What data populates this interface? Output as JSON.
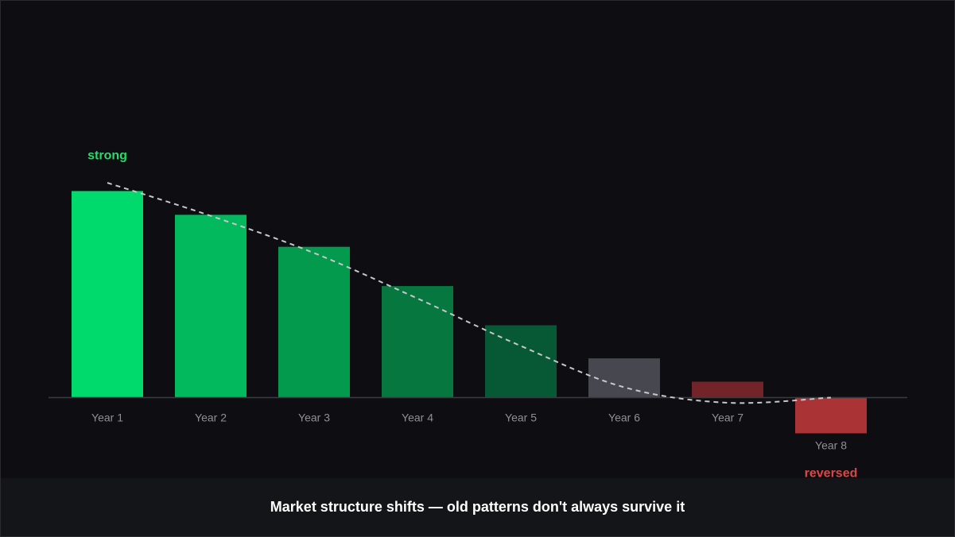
{
  "caption": "Market structure shifts — old patterns don't always survive it",
  "chart_data": {
    "type": "bar",
    "categories": [
      "Year 1",
      "Year 2",
      "Year 3",
      "Year 4",
      "Year 5",
      "Year 6",
      "Year 7",
      "Year 8"
    ],
    "values": [
      100,
      88.5,
      73,
      54,
      35,
      19,
      7.7,
      -17.3
    ],
    "bar_colors": [
      "#00d96c",
      "#02b95d",
      "#039a4e",
      "#06773f",
      "#075834",
      "#46474f",
      "#722429",
      "#aa3335"
    ],
    "trend_line": {
      "style": "dashed",
      "color": "#c8c8cc",
      "values": [
        104,
        88,
        70,
        48,
        25,
        5,
        -2.5,
        0
      ]
    },
    "annotations": [
      {
        "text": "strong",
        "category": "Year 1",
        "color": "#22dd6a"
      },
      {
        "text": "reversed",
        "category": "Year 8",
        "color": "#e04444"
      }
    ],
    "title": "",
    "xlabel": "",
    "ylabel": "",
    "grid": false,
    "legend": "none"
  }
}
